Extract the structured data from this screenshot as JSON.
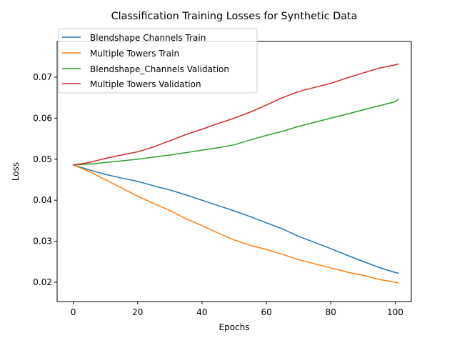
{
  "chart_data": {
    "type": "line",
    "title": "Classification Training Losses for Synthetic Data",
    "xlabel": "Epochs",
    "ylabel": "Loss",
    "xlim": [
      -5,
      105
    ],
    "ylim": [
      0.0153,
      0.0787
    ],
    "xticks": [
      0,
      20,
      40,
      60,
      80,
      100
    ],
    "yticks": [
      0.02,
      0.03,
      0.04,
      0.05,
      0.06,
      0.07
    ],
    "ytick_labels": [
      "0.02",
      "0.03",
      "0.04",
      "0.05",
      "0.06",
      "0.07"
    ],
    "legend_position": "top-left",
    "grid": false,
    "x": [
      0,
      5,
      10,
      15,
      20,
      25,
      30,
      35,
      40,
      45,
      50,
      55,
      60,
      65,
      70,
      75,
      80,
      85,
      90,
      95,
      100,
      101
    ],
    "series": [
      {
        "name": "Blendshape Channels Train",
        "color": "#1f77b4",
        "values": [
          0.0486,
          0.0474,
          0.0463,
          0.0454,
          0.0446,
          0.0435,
          0.0425,
          0.0413,
          0.04,
          0.0387,
          0.0374,
          0.036,
          0.0345,
          0.033,
          0.0312,
          0.0297,
          0.0282,
          0.0266,
          0.0251,
          0.0236,
          0.0224,
          0.0222
        ]
      },
      {
        "name": "Multiple Towers Train",
        "color": "#ff7f0e",
        "values": [
          0.0486,
          0.047,
          0.045,
          0.043,
          0.041,
          0.0392,
          0.0375,
          0.0355,
          0.0338,
          0.032,
          0.0303,
          0.029,
          0.028,
          0.0268,
          0.0255,
          0.0245,
          0.0235,
          0.0225,
          0.0217,
          0.0207,
          0.02,
          0.0198
        ]
      },
      {
        "name": "Blendshape_Channels Validation",
        "color": "#2ca02c",
        "values": [
          0.0486,
          0.0488,
          0.0492,
          0.0496,
          0.05,
          0.0505,
          0.051,
          0.0516,
          0.0522,
          0.0528,
          0.0535,
          0.0547,
          0.0558,
          0.0568,
          0.058,
          0.059,
          0.06,
          0.061,
          0.062,
          0.063,
          0.064,
          0.0646
        ]
      },
      {
        "name": "Multiple Towers Validation",
        "color": "#d62728",
        "values": [
          0.0486,
          0.0492,
          0.0502,
          0.051,
          0.0518,
          0.053,
          0.0545,
          0.056,
          0.0573,
          0.0587,
          0.06,
          0.0615,
          0.0632,
          0.065,
          0.0665,
          0.0675,
          0.0685,
          0.0698,
          0.071,
          0.0722,
          0.073,
          0.0732
        ]
      }
    ]
  }
}
